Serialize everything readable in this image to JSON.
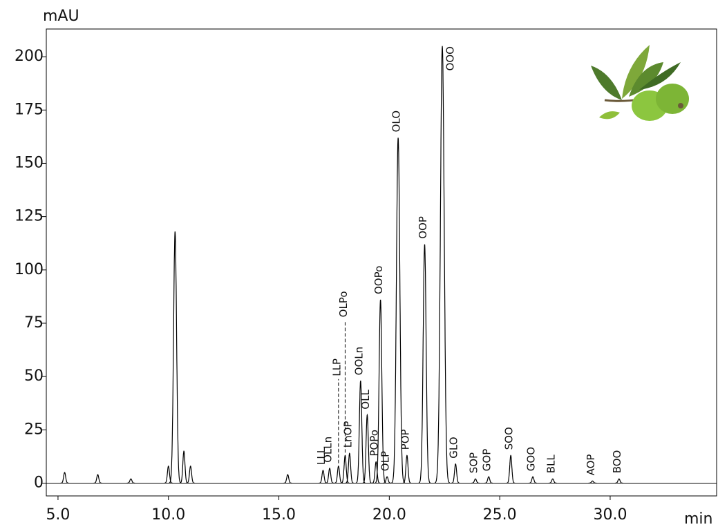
{
  "chart_data": {
    "type": "chromatogram",
    "y_label": "mAU",
    "x_label": "min",
    "xlim": [
      4.47,
      34.82
    ],
    "ylim": [
      -6,
      213
    ],
    "xticks": [
      {
        "value": 5,
        "label": "5.0"
      },
      {
        "value": 10,
        "label": "10.0"
      },
      {
        "value": 15,
        "label": "15.0"
      },
      {
        "value": 20,
        "label": "20.0"
      },
      {
        "value": 25,
        "label": "25.0"
      },
      {
        "value": 30,
        "label": "30.0"
      }
    ],
    "yticks": [
      0,
      25,
      50,
      75,
      100,
      125,
      150,
      175,
      200
    ],
    "color": "#000000",
    "x": [
      5.3,
      6.8,
      8.3,
      10.0,
      10.3,
      10.7,
      11.0,
      15.4,
      17.0,
      17.3,
      17.7,
      18.0,
      18.2,
      18.7,
      19.0,
      19.4,
      19.6,
      19.9,
      20.4,
      20.8,
      21.6,
      22.4,
      23.0,
      23.9,
      24.5,
      25.5,
      26.5,
      27.4,
      29.2,
      30.4
    ],
    "values": [
      5,
      4,
      2,
      8,
      118,
      15,
      8,
      4,
      6,
      7,
      8,
      13,
      14,
      48,
      32,
      10,
      86,
      3,
      162,
      13,
      112,
      205,
      9,
      2,
      3,
      13,
      3,
      2,
      1,
      2
    ],
    "labels": [
      null,
      null,
      null,
      null,
      null,
      null,
      null,
      null,
      "LLL",
      "OLLn",
      "LLP",
      "OLPo",
      "LnOP",
      "OOLn",
      "OLL",
      "POPo",
      "OOPo",
      "OLP",
      "OLO",
      "POP",
      "OOP",
      "OOO",
      "GLO",
      "SOP",
      "GOP",
      "SOO",
      "GOO",
      "BLL",
      "AOP",
      "BOO"
    ]
  }
}
